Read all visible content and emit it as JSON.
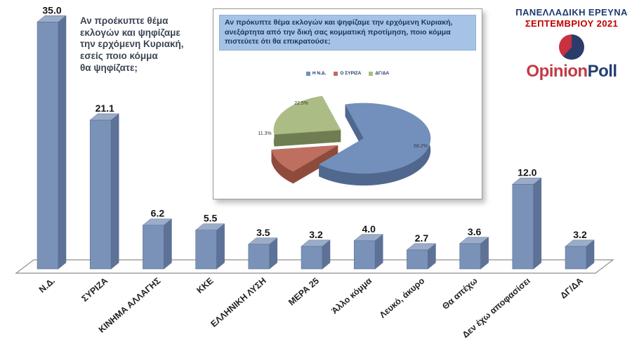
{
  "header": {
    "survey_title": "ΠΑΝΕΛΛΑΔΙΚΗ ΕΡΕΥΝΑ",
    "survey_period": "ΣΕΠΤΕΜΒΡΙΟΥ 2021",
    "brand_part1": "Opinion",
    "brand_part2": "Poll"
  },
  "main_question": "Αν προέκυπτε θέμα\nεκλογών και ψηφίζαμε\nτην ερχόμενη Κυριακή,\nεσείς ποιο κόμμα\nθα ψηφίζατε;",
  "inset_question": "Αν πρόκυπτε θέμα εκλογών και ψηφίζαμε την ερχόμενη Κυριακή, ανεξάρτητα από την δική σας κομματική προτίμηση, ποιο κόμμα πιστεύετε ότι θα επικρατούσε;",
  "colors": {
    "bar_front": "#7A92B8",
    "bar_top": "#9BACC9",
    "bar_side": "#5D7296",
    "bar_stroke": "#54688C",
    "pie_blue_top": "#7390BC",
    "pie_blue_side": "#50688E",
    "pie_red_top": "#BF6F5F",
    "pie_red_side": "#8E4B3C",
    "pie_green_top": "#ABBD84",
    "pie_green_side": "#6F7D52",
    "navy_text": "#1F3864",
    "red_text": "#C00000",
    "floor_stroke": "#8F8F8F"
  },
  "chart_data": [
    {
      "type": "bar",
      "title": "Αν προέκυπτε θέμα εκλογών και ψηφίζαμε την ερχόμενη Κυριακή, εσείς ποιο κόμμα θα ψηφίζατε;",
      "categories": [
        "Ν.Δ.",
        "ΣΥΡΙΖΑ",
        "ΚΙΝΗΜΑ ΑΛΛΑΓΗΣ",
        "ΚΚΕ",
        "ΕΛΛΗΝΙΚΗ ΛΥΣΗ",
        "ΜΕΡΑ 25",
        "Άλλο κόμμα",
        "Λευκό, άκυρο",
        "Θα απέχω",
        "Δεν έχω αποφασίσει",
        "ΔΓ/ΔΑ"
      ],
      "values": [
        35.0,
        21.1,
        6.2,
        5.5,
        3.5,
        3.2,
        4.0,
        2.7,
        3.6,
        12.0,
        3.2
      ],
      "value_labels": [
        "35.0",
        "21.1",
        "6.2",
        "5.5",
        "3.5",
        "3.2",
        "4.0",
        "2.7",
        "3.6",
        "12.0",
        "3.2"
      ],
      "xlabel": "",
      "ylabel": "",
      "ylim": [
        0,
        35
      ],
      "grid": false,
      "style": "3d-bar",
      "bar_color": "#7A92B8"
    },
    {
      "type": "pie",
      "title": "Αν πρόκυπτε θέμα εκλογών και ψηφίζαμε την ερχόμενη Κυριακή, ανεξάρτητα από την δική σας κομματική προτίμηση, ποιο κόμμα πιστεύετε ότι θα επικρατούσε;",
      "labels": [
        "Η Ν.Δ.",
        "Ο ΣΥΡΙΖΑ",
        "ΔΓ/ΔΑ"
      ],
      "values": [
        66.2,
        11.3,
        22.5
      ],
      "value_labels": [
        "66.2%",
        "11.3%",
        "22.5%"
      ],
      "colors": [
        "#7390BC",
        "#BF6F5F",
        "#ABBD84"
      ],
      "legend_position": "top",
      "style": "3d-pie-exploded"
    }
  ]
}
